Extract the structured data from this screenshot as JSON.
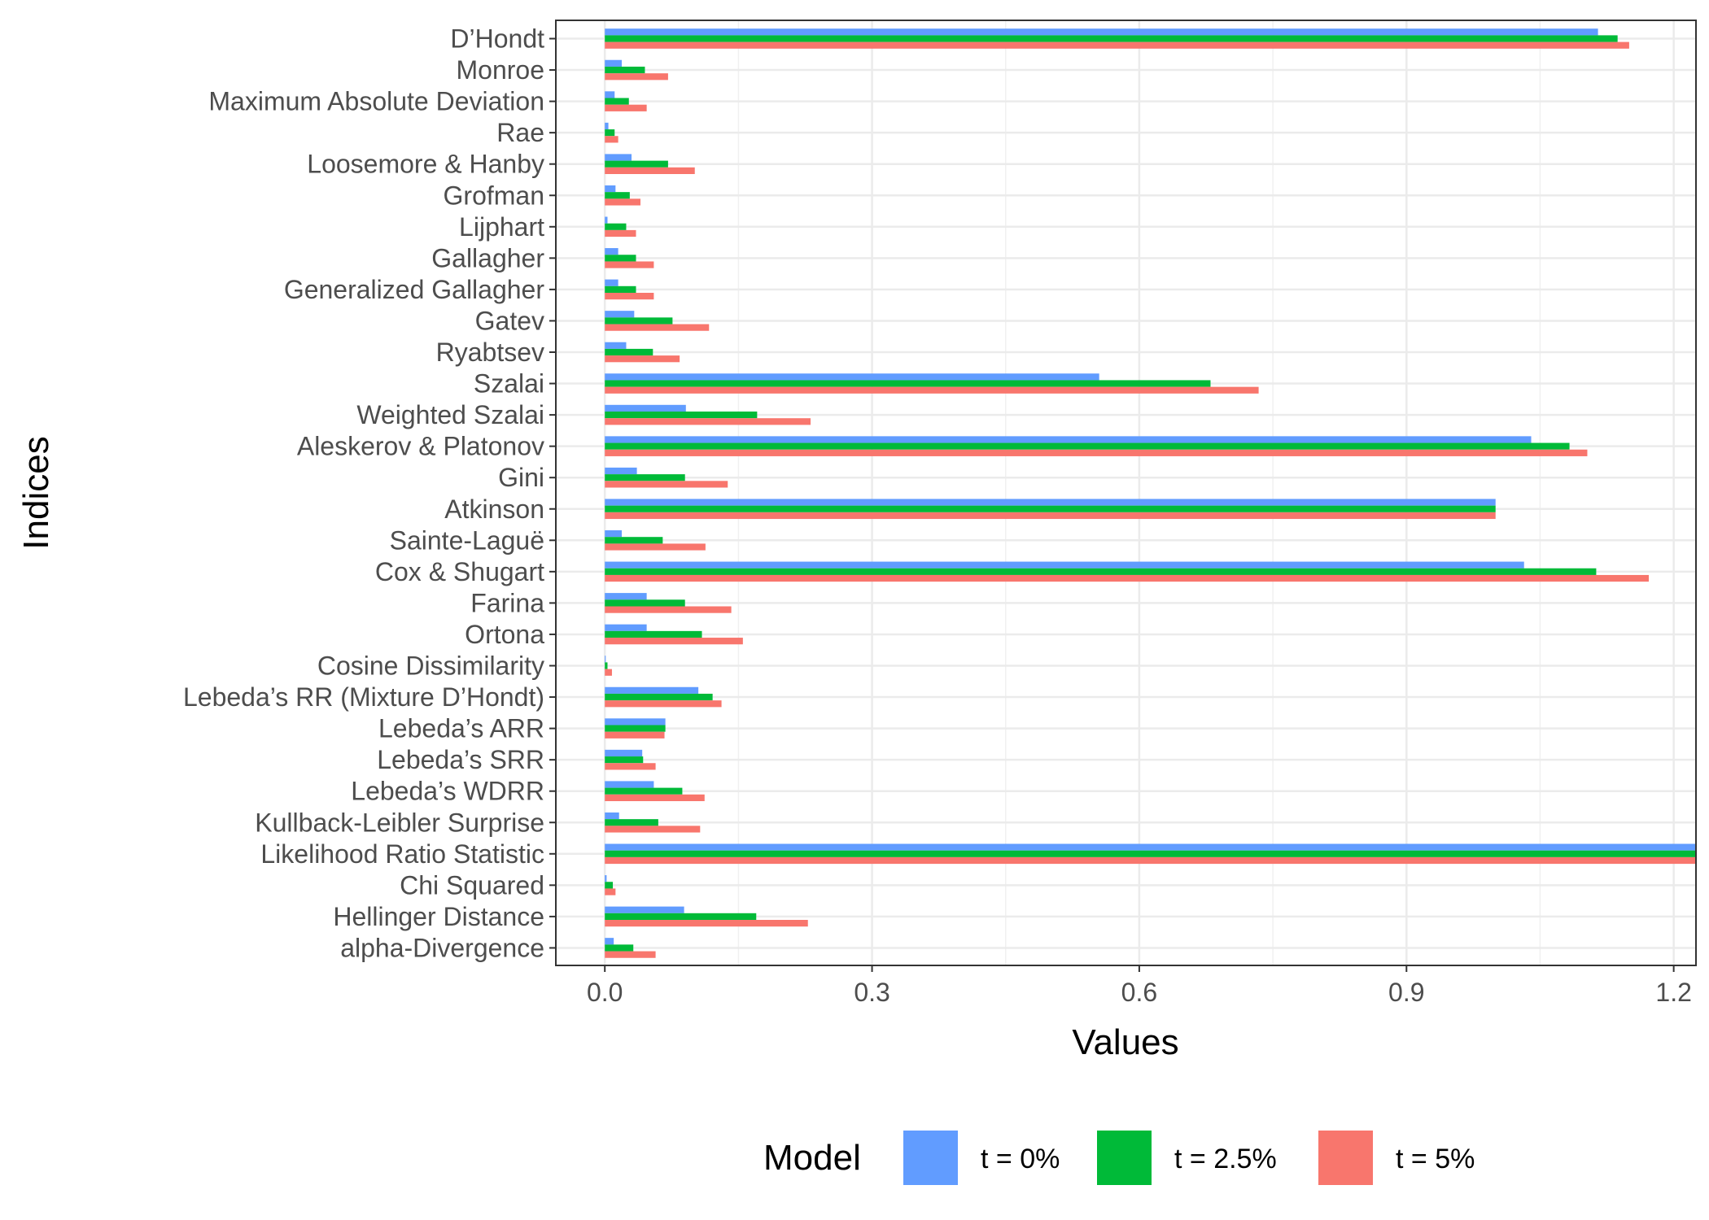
{
  "chart_data": {
    "type": "bar",
    "orientation": "horizontal",
    "xlabel": "Values",
    "ylabel": "Indices",
    "xlim": [
      -0.055,
      1.225
    ],
    "xticks": [
      0.0,
      0.3,
      0.6,
      0.9,
      1.2
    ],
    "xtick_labels": [
      "0.0",
      "0.3",
      "0.6",
      "0.9",
      "1.2"
    ],
    "grid": true,
    "legend": {
      "title": "Model",
      "position": "bottom"
    },
    "categories": [
      "D’Hondt",
      "Monroe",
      "Maximum Absolute Deviation",
      "Rae",
      "Loosemore & Hanby",
      "Grofman",
      "Lijphart",
      "Gallagher",
      "Generalized Gallagher",
      "Gatev",
      "Ryabtsev",
      "Szalai",
      "Weighted Szalai",
      "Aleskerov & Platonov",
      "Gini",
      "Atkinson",
      "Sainte-Laguë",
      "Cox & Shugart",
      "Farina",
      "Ortona",
      "Cosine Dissimilarity",
      "Lebeda’s RR (Mixture D’Hondt)",
      "Lebeda’s ARR",
      "Lebeda’s SRR",
      "Lebeda’s WDRR",
      "Kullback-Leibler Surprise",
      "Likelihood Ratio Statistic",
      "Chi Squared",
      "Hellinger Distance",
      "alpha-Divergence"
    ],
    "series": [
      {
        "name": "t = 0%",
        "color": "#619CFF",
        "values": [
          1.115,
          0.019,
          0.011,
          0.004,
          0.03,
          0.012,
          0.003,
          0.015,
          0.015,
          0.033,
          0.024,
          0.555,
          0.091,
          1.04,
          0.036,
          1.0,
          0.019,
          1.032,
          0.047,
          0.047,
          0.001,
          0.105,
          0.068,
          0.042,
          0.055,
          0.016,
          1.225,
          0.002,
          0.089,
          0.01
        ]
      },
      {
        "name": "t = 2.5%",
        "color": "#00BA38",
        "values": [
          1.137,
          0.045,
          0.027,
          0.011,
          0.071,
          0.028,
          0.024,
          0.035,
          0.035,
          0.076,
          0.054,
          0.68,
          0.171,
          1.083,
          0.09,
          1.0,
          0.065,
          1.113,
          0.09,
          0.109,
          0.003,
          0.121,
          0.068,
          0.043,
          0.087,
          0.06,
          1.225,
          0.009,
          0.17,
          0.032
        ]
      },
      {
        "name": "t = 5%",
        "color": "#F8766D",
        "values": [
          1.15,
          0.071,
          0.047,
          0.015,
          0.101,
          0.04,
          0.035,
          0.055,
          0.055,
          0.117,
          0.084,
          0.734,
          0.231,
          1.103,
          0.138,
          1.0,
          0.113,
          1.172,
          0.142,
          0.155,
          0.008,
          0.131,
          0.067,
          0.057,
          0.112,
          0.107,
          1.225,
          0.012,
          0.228,
          0.057
        ]
      }
    ]
  }
}
